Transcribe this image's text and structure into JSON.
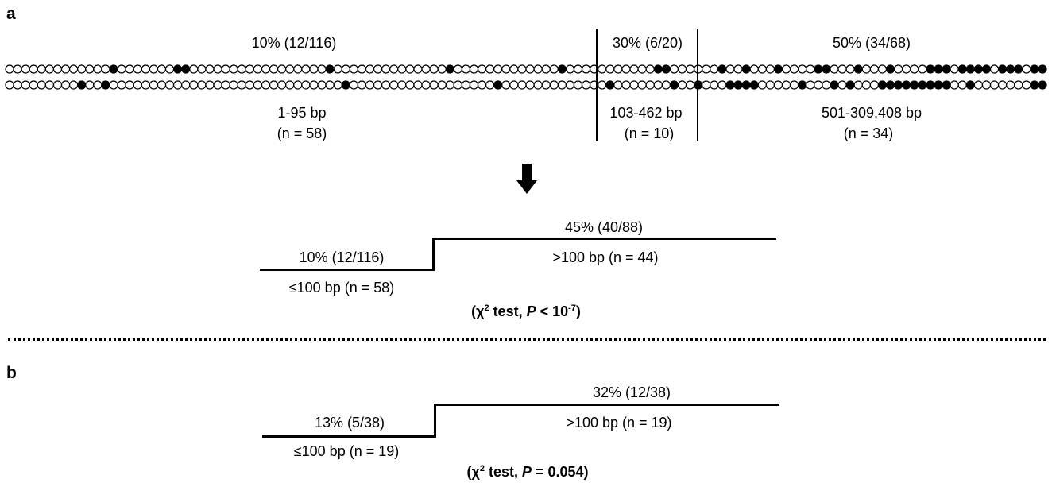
{
  "panel_a": {
    "label": "a",
    "region1": {
      "percent": "10% (12/116)",
      "range": "1-95 bp",
      "n": "(n = 58)"
    },
    "region2": {
      "percent": "30% (6/20)",
      "range": "103-462 bp",
      "n": "(n = 10)"
    },
    "region3": {
      "percent": "50% (34/68)",
      "range": "501-309,408 bp",
      "n": "(n = 34)"
    },
    "row_top": "0000000000000100000001100000000000000000100000000000000100000000000001000000000001100000010010001000011000100010000111011110111011",
    "row_bottom": "0000000001001000000000000000000000000000001000000000000000000100000000000001000000010010001111000001000101000111111111001000000011",
    "step": {
      "low_percent": "10% (12/116)",
      "low_range": "≤100 bp (n = 58)",
      "high_percent": "45% (40/88)",
      "high_range": ">100 bp (n = 44)",
      "test_prefix": "(χ",
      "test_sup": "2",
      "test_mid": " test, ",
      "test_p": "P",
      "test_cmp": " < 10",
      "test_exp": "-7",
      "test_close": ")"
    }
  },
  "panel_b": {
    "label": "b",
    "step": {
      "low_percent": "13% (5/38)",
      "low_range": "≤100 bp (n = 19)",
      "high_percent": "32% (12/38)",
      "high_range": ">100 bp (n = 19)",
      "test_prefix": "(χ",
      "test_sup": "2",
      "test_mid": " test, ",
      "test_p": "P",
      "test_cmp": " = 0.054",
      "test_close": ")"
    }
  },
  "colors": {
    "ink": "#000000",
    "open_fill": "#ffffff"
  }
}
